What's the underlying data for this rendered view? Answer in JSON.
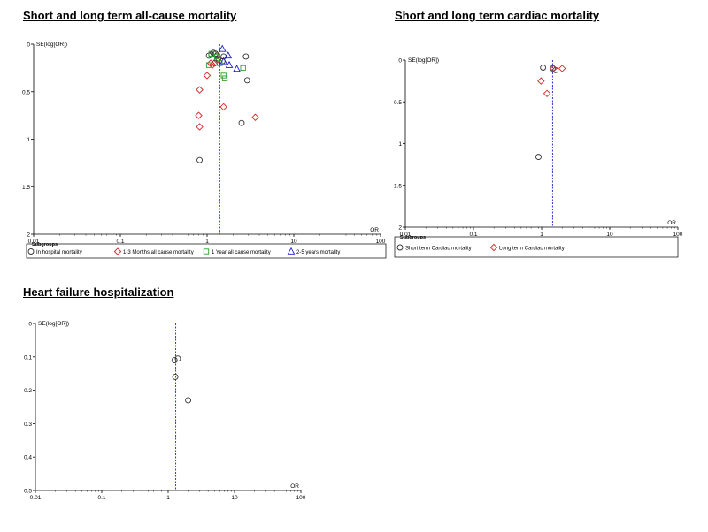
{
  "colors": {
    "in_hospital": "#333333",
    "months": "#d62728",
    "year": "#2ca02c",
    "years_2_5": "#1f1fcc",
    "short_cardiac": "#333333",
    "long_cardiac": "#d62728",
    "ref_line": "#3333cc"
  },
  "chart_data": [
    {
      "type": "scatter",
      "title": "Short and long term all-cause mortality",
      "xlabel": "OR",
      "ylabel": "SE(log[OR])",
      "x_scale": "log",
      "xlim": [
        0.01,
        100
      ],
      "ylim": [
        0,
        2
      ],
      "y_inverted": true,
      "x_ticks": [
        "0.01",
        "0.1",
        "1",
        "10",
        "100"
      ],
      "y_ticks": [
        "0",
        "0.5",
        "1",
        "1.5",
        "2"
      ],
      "reference_line_or": 1.4,
      "legend_title": "Subgroups",
      "legend_position": "bottom",
      "series": [
        {
          "name": "In hospital mortality",
          "marker": "circle",
          "color_key": "in_hospital",
          "points": [
            [
              0.82,
              1.22
            ],
            [
              1.05,
              0.12
            ],
            [
              1.12,
              0.11
            ],
            [
              1.18,
              0.09
            ],
            [
              1.25,
              0.1
            ],
            [
              1.3,
              0.12
            ],
            [
              1.22,
              0.2
            ],
            [
              1.35,
              0.15
            ],
            [
              1.55,
              0.13
            ],
            [
              1.5,
              0.18
            ],
            [
              2.5,
              0.83
            ],
            [
              2.8,
              0.13
            ],
            [
              2.9,
              0.38
            ]
          ]
        },
        {
          "name": "1-3 Months all cause mortality",
          "marker": "diamond",
          "color_key": "months",
          "points": [
            [
              0.82,
              0.48
            ],
            [
              0.8,
              0.75
            ],
            [
              0.82,
              0.87
            ],
            [
              1.0,
              0.33
            ],
            [
              1.1,
              0.2
            ],
            [
              1.15,
              0.22
            ],
            [
              1.3,
              0.17
            ],
            [
              1.55,
              0.66
            ],
            [
              3.6,
              0.77
            ]
          ]
        },
        {
          "name": "1 Year all cause mortality",
          "marker": "square",
          "color_key": "year",
          "points": [
            [
              1.05,
              0.22
            ],
            [
              1.12,
              0.1
            ],
            [
              1.3,
              0.13
            ],
            [
              1.4,
              0.2
            ],
            [
              1.55,
              0.33
            ],
            [
              1.6,
              0.36
            ],
            [
              2.6,
              0.25
            ]
          ]
        },
        {
          "name": "2-5 years mortality",
          "marker": "triangle",
          "color_key": "years_2_5",
          "points": [
            [
              1.5,
              0.05
            ],
            [
              1.55,
              0.18
            ],
            [
              1.75,
              0.12
            ],
            [
              1.8,
              0.22
            ],
            [
              2.2,
              0.26
            ]
          ]
        }
      ]
    },
    {
      "type": "scatter",
      "title": "Short and long term cardiac mortality",
      "xlabel": "OR",
      "ylabel": "SE(log[OR])",
      "x_scale": "log",
      "xlim": [
        0.01,
        100
      ],
      "ylim": [
        0,
        2
      ],
      "y_inverted": true,
      "x_ticks": [
        "0.01",
        "0.1",
        "1",
        "10",
        "100"
      ],
      "y_ticks": [
        "0",
        "0.5",
        "1",
        "1.5",
        "2"
      ],
      "reference_line_or": 1.45,
      "legend_title": "Subgroups",
      "legend_position": "bottom",
      "series": [
        {
          "name": "Short term Cardiac mortality",
          "marker": "circle",
          "color_key": "short_cardiac",
          "points": [
            [
              1.05,
              0.09
            ],
            [
              1.45,
              0.1
            ],
            [
              1.6,
              0.12
            ],
            [
              0.9,
              1.16
            ]
          ]
        },
        {
          "name": "Long term Cardiac mortality",
          "marker": "diamond",
          "color_key": "long_cardiac",
          "points": [
            [
              2.0,
              0.1
            ],
            [
              1.5,
              0.1
            ],
            [
              0.98,
              0.25
            ],
            [
              1.2,
              0.4
            ]
          ]
        }
      ]
    },
    {
      "type": "scatter",
      "title": "Heart failure hospitalization",
      "xlabel": "OR",
      "ylabel": "SE(log[OR])",
      "x_scale": "log",
      "xlim": [
        0.01,
        100
      ],
      "ylim": [
        0,
        0.5
      ],
      "y_inverted": true,
      "x_ticks": [
        "0.01",
        "0.1",
        "1",
        "10",
        "100"
      ],
      "y_ticks": [
        "0",
        "0.1",
        "0.2",
        "0.3",
        "0.4",
        "0.5"
      ],
      "reference_line_or": 1.3,
      "series": [
        {
          "marker": "circle",
          "color_key": "in_hospital",
          "points": [
            [
              1.25,
              0.11
            ],
            [
              1.4,
              0.105
            ],
            [
              1.28,
              0.16
            ],
            [
              2.0,
              0.23
            ]
          ]
        }
      ]
    }
  ]
}
